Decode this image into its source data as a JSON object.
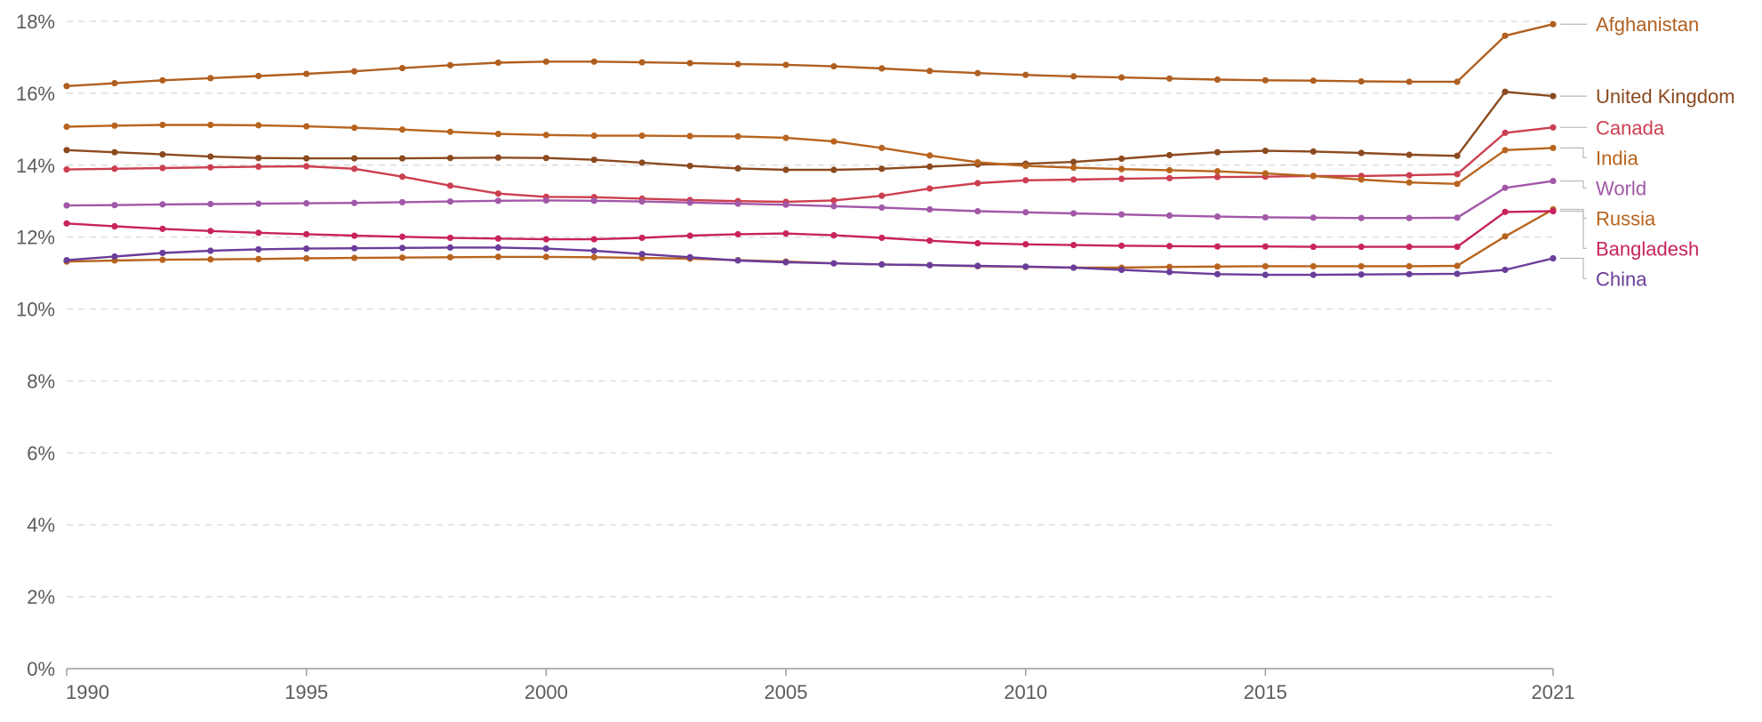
{
  "chart_data": {
    "type": "line",
    "title": "",
    "xlabel": "",
    "ylabel": "",
    "x": [
      1990,
      1991,
      1992,
      1993,
      1994,
      1995,
      1996,
      1997,
      1998,
      1999,
      2000,
      2001,
      2002,
      2003,
      2004,
      2005,
      2006,
      2007,
      2008,
      2009,
      2010,
      2011,
      2012,
      2013,
      2014,
      2015,
      2016,
      2017,
      2018,
      2019,
      2020,
      2021
    ],
    "xlim": [
      1990,
      2021
    ],
    "ylim": [
      0,
      18
    ],
    "x_tick_values": [
      1990,
      1995,
      2000,
      2005,
      2010,
      2015,
      2021
    ],
    "x_tick_labels": [
      "1990",
      "1995",
      "2000",
      "2005",
      "2010",
      "2015",
      "2021"
    ],
    "y_tick_values": [
      0,
      2,
      4,
      6,
      8,
      10,
      12,
      14,
      16,
      18
    ],
    "y_tick_labels": [
      "0%",
      "2%",
      "4%",
      "6%",
      "8%",
      "10%",
      "12%",
      "14%",
      "16%",
      "18%"
    ],
    "grid": true,
    "legend_placement": "right",
    "series": [
      {
        "name": "Afghanistan",
        "color": "#b05f20",
        "values": [
          16.2,
          16.28,
          16.36,
          16.42,
          16.48,
          16.54,
          16.61,
          16.7,
          16.78,
          16.85,
          16.88,
          16.88,
          16.86,
          16.84,
          16.81,
          16.79,
          16.75,
          16.69,
          16.62,
          16.56,
          16.51,
          16.47,
          16.44,
          16.41,
          16.38,
          16.36,
          16.35,
          16.33,
          16.32,
          16.32,
          17.6,
          17.92
        ]
      },
      {
        "name": "United Kingdom",
        "color": "#8b4a1f",
        "values": [
          14.42,
          14.36,
          14.3,
          14.24,
          14.2,
          14.19,
          14.19,
          14.19,
          14.2,
          14.21,
          14.2,
          14.15,
          14.07,
          13.98,
          13.91,
          13.87,
          13.87,
          13.9,
          13.96,
          14.02,
          14.04,
          14.09,
          14.18,
          14.28,
          14.36,
          14.4,
          14.38,
          14.34,
          14.29,
          14.26,
          16.04,
          15.92
        ]
      },
      {
        "name": "Canada",
        "color": "#cc3f50",
        "values": [
          13.88,
          13.9,
          13.92,
          13.94,
          13.96,
          13.97,
          13.9,
          13.68,
          13.43,
          13.21,
          13.12,
          13.11,
          13.07,
          13.03,
          13.0,
          12.98,
          13.02,
          13.15,
          13.35,
          13.5,
          13.58,
          13.6,
          13.62,
          13.64,
          13.67,
          13.68,
          13.7,
          13.7,
          13.72,
          13.75,
          14.9,
          15.05
        ]
      },
      {
        "name": "India",
        "color": "#b8641e",
        "values": [
          15.07,
          15.1,
          15.12,
          15.12,
          15.11,
          15.08,
          15.04,
          14.99,
          14.93,
          14.87,
          14.84,
          14.82,
          14.82,
          14.81,
          14.8,
          14.76,
          14.66,
          14.48,
          14.27,
          14.08,
          13.98,
          13.93,
          13.89,
          13.86,
          13.83,
          13.77,
          13.7,
          13.6,
          13.52,
          13.48,
          14.42,
          14.48
        ]
      },
      {
        "name": "World",
        "color": "#a258a8",
        "values": [
          12.88,
          12.89,
          12.91,
          12.92,
          12.93,
          12.94,
          12.95,
          12.97,
          12.99,
          13.01,
          13.02,
          13.01,
          12.99,
          12.96,
          12.93,
          12.9,
          12.86,
          12.82,
          12.77,
          12.72,
          12.69,
          12.66,
          12.63,
          12.6,
          12.57,
          12.55,
          12.54,
          12.53,
          12.53,
          12.54,
          13.37,
          13.56
        ]
      },
      {
        "name": "Russia",
        "color": "#b8641e",
        "values": [
          11.32,
          11.35,
          11.37,
          11.38,
          11.39,
          11.41,
          11.42,
          11.43,
          11.44,
          11.45,
          11.45,
          11.44,
          11.42,
          11.4,
          11.36,
          11.32,
          11.27,
          11.24,
          11.22,
          11.19,
          11.17,
          11.15,
          11.15,
          11.17,
          11.18,
          11.19,
          11.19,
          11.19,
          11.19,
          11.2,
          12.02,
          12.77
        ]
      },
      {
        "name": "Bangladesh",
        "color": "#c8235f",
        "values": [
          12.38,
          12.3,
          12.23,
          12.17,
          12.12,
          12.08,
          12.04,
          12.01,
          11.98,
          11.96,
          11.94,
          11.94,
          11.98,
          12.04,
          12.08,
          12.1,
          12.05,
          11.98,
          11.9,
          11.83,
          11.8,
          11.78,
          11.76,
          11.75,
          11.74,
          11.74,
          11.73,
          11.73,
          11.73,
          11.73,
          12.7,
          12.72
        ]
      },
      {
        "name": "China",
        "color": "#6a3d9a",
        "values": [
          11.36,
          11.46,
          11.56,
          11.62,
          11.66,
          11.68,
          11.69,
          11.7,
          11.71,
          11.71,
          11.68,
          11.62,
          11.53,
          11.44,
          11.35,
          11.3,
          11.27,
          11.24,
          11.22,
          11.2,
          11.18,
          11.15,
          11.09,
          11.03,
          10.97,
          10.95,
          10.95,
          10.96,
          10.97,
          10.98,
          11.09,
          11.41
        ]
      }
    ]
  }
}
